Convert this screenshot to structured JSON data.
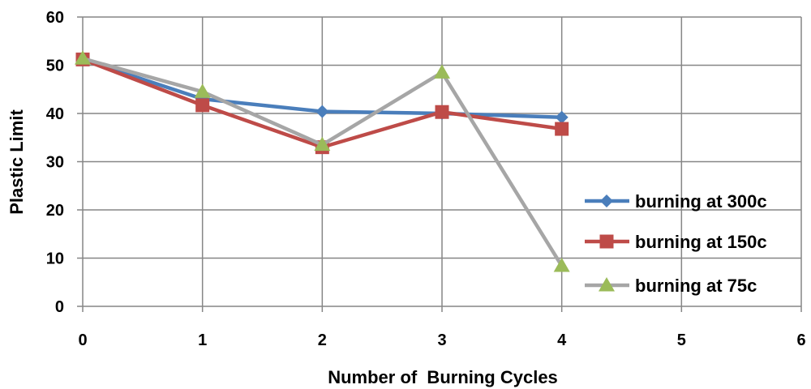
{
  "chart_data": {
    "type": "line",
    "xlabel": "Number of  Burning Cycles",
    "ylabel": "Plastic Limit",
    "xlim": [
      0,
      6
    ],
    "ylim": [
      0,
      60
    ],
    "xticks": [
      "0",
      "1",
      "2",
      "3",
      "4",
      "5",
      "6"
    ],
    "yticks": [
      "0",
      "10",
      "20",
      "30",
      "40",
      "50",
      "60"
    ],
    "grid": true,
    "legend_position": "right",
    "x": [
      0,
      1,
      2,
      3,
      4
    ],
    "series": [
      {
        "name": "burning at 300c",
        "values": [
          51.2,
          43.0,
          40.4,
          40.0,
          39.2
        ],
        "color": "#4A7EBB",
        "marker": "diamond"
      },
      {
        "name": "burning at 150c",
        "values": [
          51.2,
          41.7,
          33.0,
          40.3,
          36.8
        ],
        "color": "#BE4B48",
        "marker": "square"
      },
      {
        "name": "burning at 75c",
        "values": [
          51.4,
          44.5,
          33.5,
          48.5,
          8.4
        ],
        "color": "#A6A6A6",
        "marker": "triangle",
        "marker_color": "#9BBB59"
      }
    ]
  }
}
